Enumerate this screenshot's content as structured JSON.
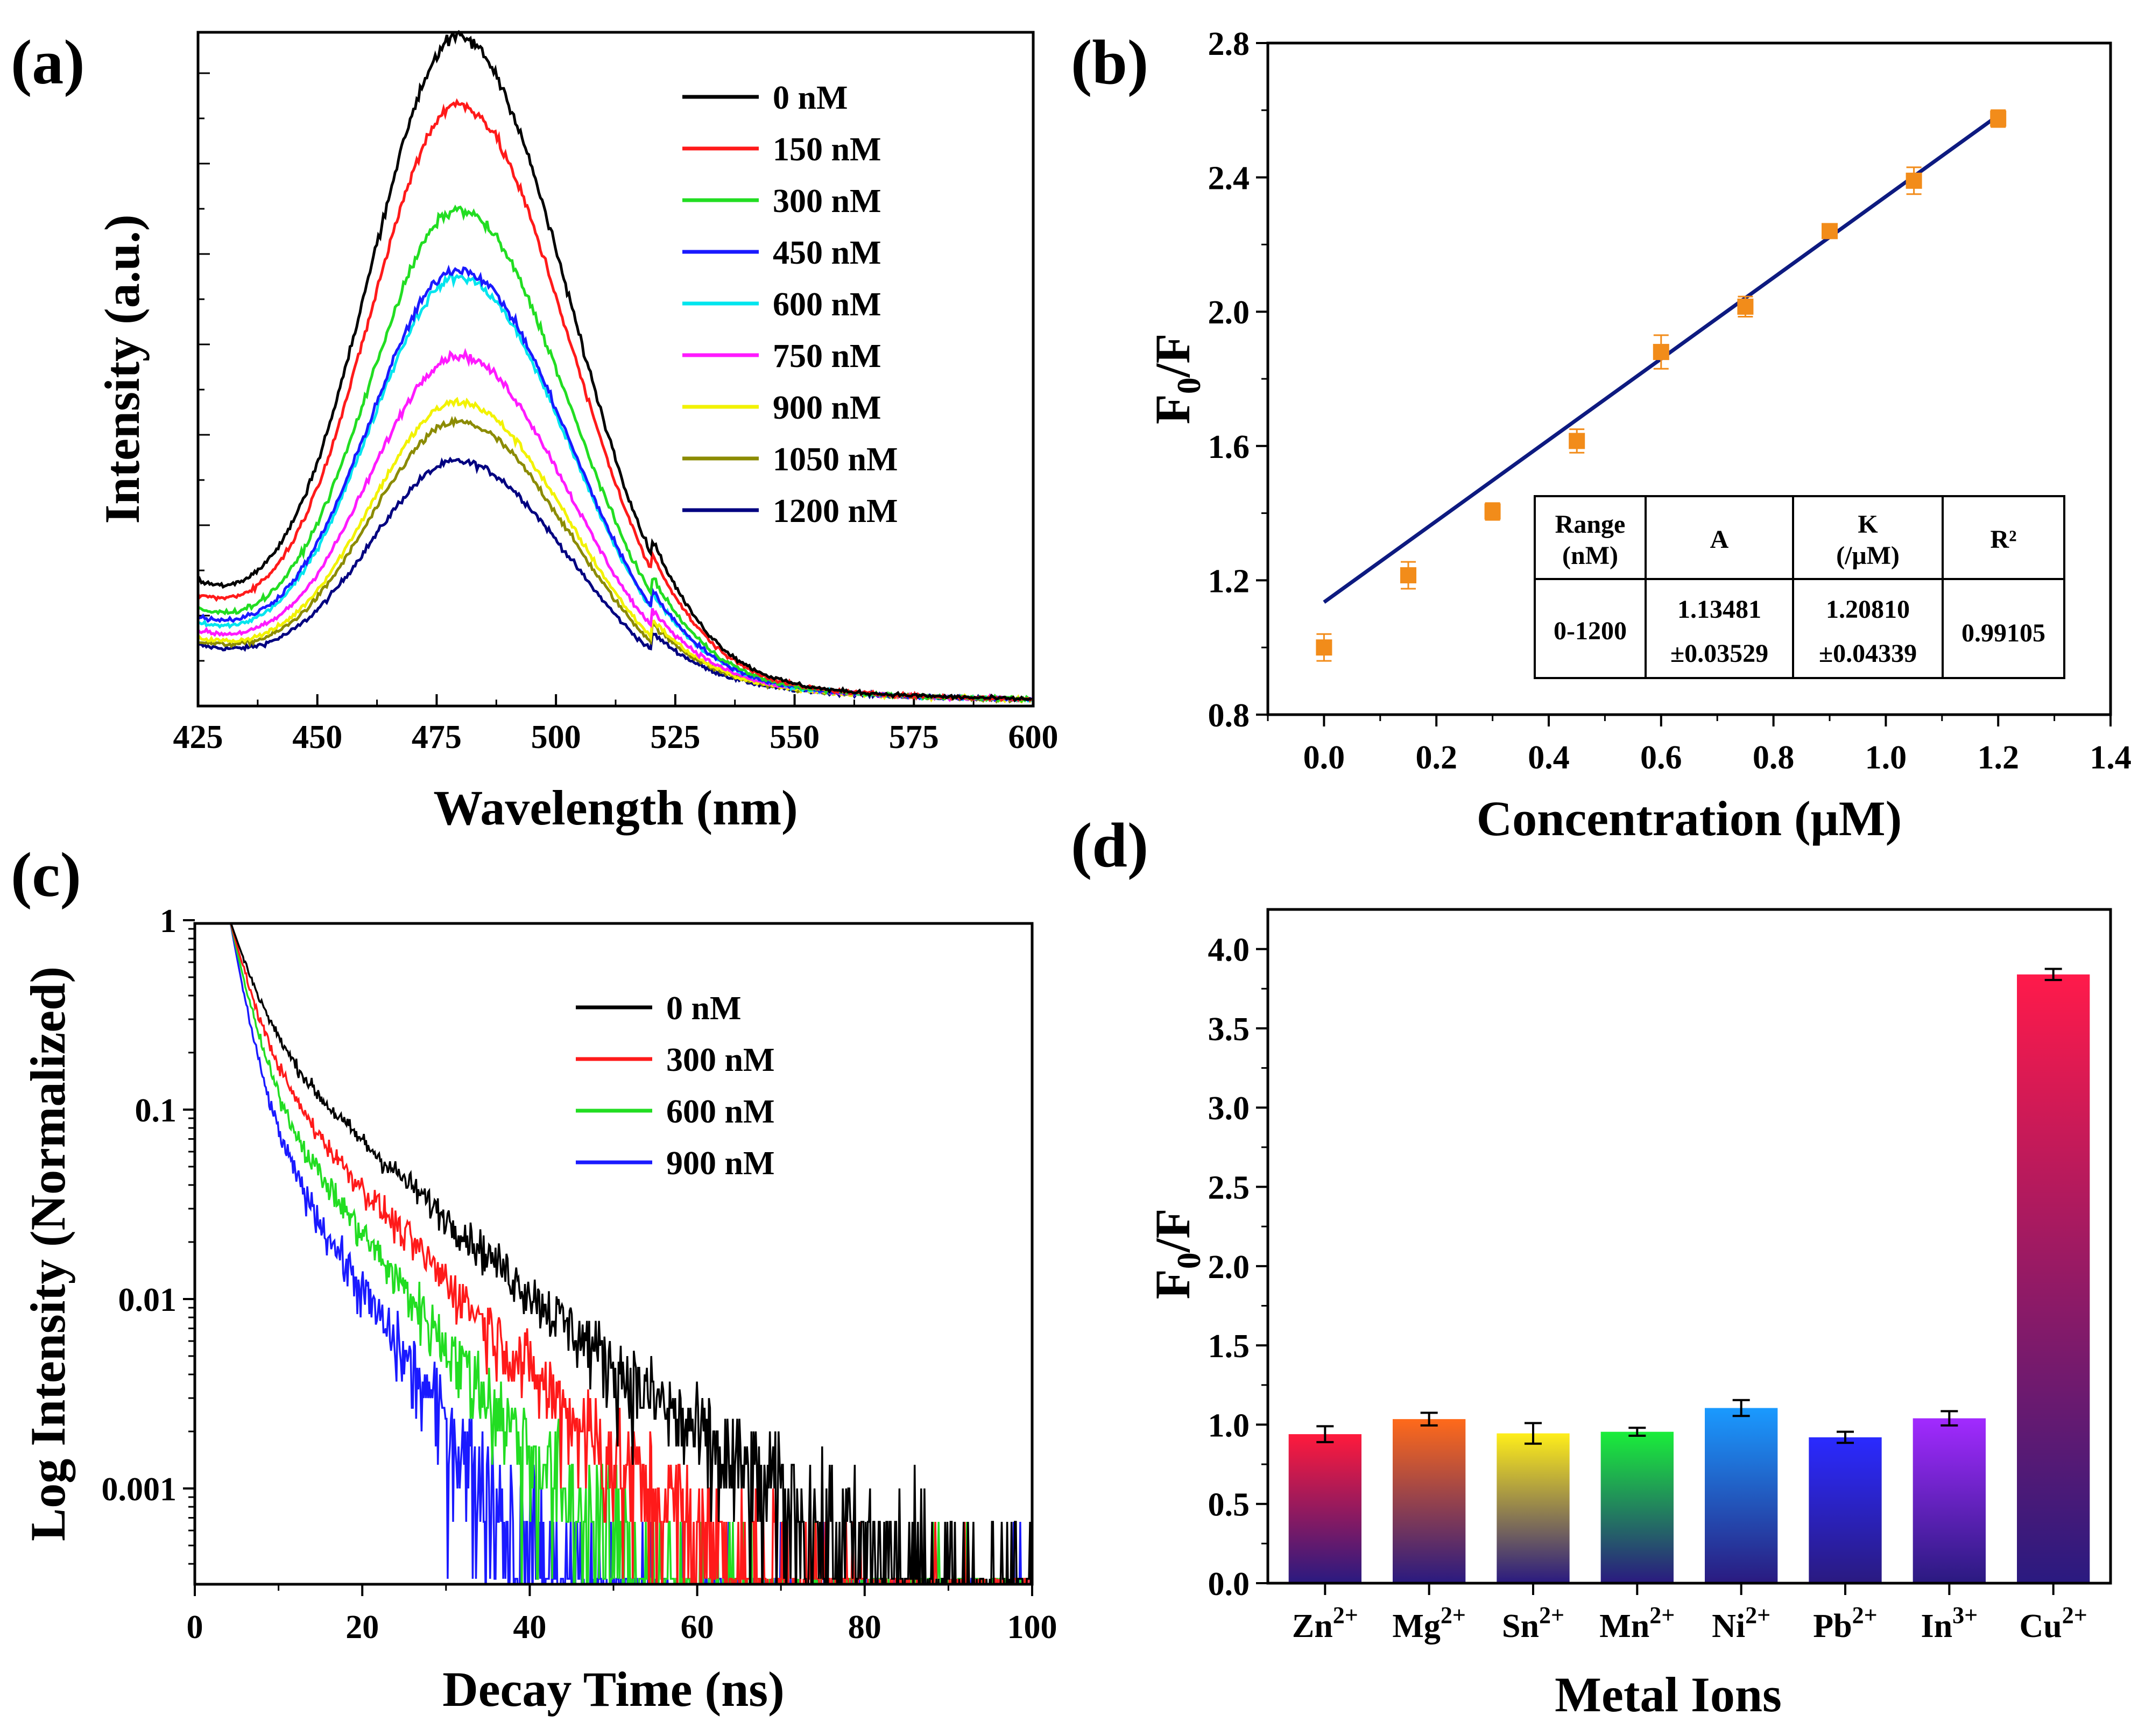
{
  "figure": {
    "panel_labels": [
      "(a)",
      "(b)",
      "(c)",
      "(d)"
    ]
  },
  "chart_data": [
    {
      "panel": "a",
      "type": "line",
      "title": "",
      "xlabel": "Wavelength (nm)",
      "ylabel": "Intensity (a.u.)",
      "xlim": [
        425,
        600
      ],
      "ylim": [
        0,
        1.05
      ],
      "x_ticks": [
        "425",
        "450",
        "475",
        "500",
        "525",
        "550",
        "575",
        "600"
      ],
      "x_tick_values": [
        425,
        450,
        475,
        500,
        525,
        550,
        575,
        600
      ],
      "legend_position": "top-right",
      "peak_wavelength": 480,
      "series": [
        {
          "name": "0 nM",
          "color": "#000000",
          "peak": 1.0,
          "start": 0.18
        },
        {
          "name": "150 nM",
          "color": "#ff1a1a",
          "peak": 0.9,
          "start": 0.16
        },
        {
          "name": "300 nM",
          "color": "#22dd22",
          "peak": 0.74,
          "start": 0.14
        },
        {
          "name": "450 nM",
          "color": "#1a1aff",
          "peak": 0.65,
          "start": 0.13
        },
        {
          "name": "600 nM",
          "color": "#00e5ee",
          "peak": 0.64,
          "start": 0.12
        },
        {
          "name": "750 nM",
          "color": "#ff1aff",
          "peak": 0.52,
          "start": 0.11
        },
        {
          "name": "900 nM",
          "color": "#f2f200",
          "peak": 0.45,
          "start": 0.1
        },
        {
          "name": "1050 nM",
          "color": "#8b8b00",
          "peak": 0.42,
          "start": 0.095
        },
        {
          "name": "1200 nM",
          "color": "#000080",
          "peak": 0.36,
          "start": 0.09
        }
      ]
    },
    {
      "panel": "b",
      "type": "scatter",
      "title": "",
      "xlabel": "Concentration (μM)",
      "ylabel_main": "F",
      "ylabel_sub": "0",
      "ylabel_tail": "/F",
      "xlim": [
        -0.1,
        1.4
      ],
      "ylim": [
        0.8,
        2.8
      ],
      "x_ticks": [
        "0.0",
        "0.2",
        "0.4",
        "0.6",
        "0.8",
        "1.0",
        "1.2",
        "1.4"
      ],
      "x_tick_values": [
        0,
        0.2,
        0.4,
        0.6,
        0.8,
        1.0,
        1.2,
        1.4
      ],
      "y_ticks": [
        "0.8",
        "1.2",
        "1.6",
        "2.0",
        "2.4",
        "2.8"
      ],
      "y_tick_values": [
        0.8,
        1.2,
        1.6,
        2.0,
        2.4,
        2.8
      ],
      "marker_color": "#f28c1a",
      "fit_color": "#0d1a80",
      "x": [
        0.0,
        0.15,
        0.3,
        0.45,
        0.6,
        0.75,
        0.9,
        1.05,
        1.2
      ],
      "y": [
        1.0,
        1.215,
        1.405,
        1.615,
        1.88,
        2.015,
        2.24,
        2.39,
        2.575
      ],
      "yerr": [
        0.04,
        0.04,
        0.025,
        0.035,
        0.05,
        0.03,
        0.02,
        0.04,
        0.025
      ],
      "fit": {
        "intercept": 1.13481,
        "slope": 1.2081,
        "x_range": [
          0,
          1.2
        ]
      },
      "table": {
        "headers": [
          [
            "Range",
            "(nM)"
          ],
          [
            "A"
          ],
          [
            "K",
            "(/μM)"
          ],
          [
            "R²"
          ]
        ],
        "row": [
          [
            "0-1200"
          ],
          [
            "1.13481",
            "±0.03529"
          ],
          [
            "1.20810",
            "±0.04339"
          ],
          [
            "0.99105"
          ]
        ]
      }
    },
    {
      "panel": "c",
      "type": "line",
      "title": "",
      "xlabel": "Decay Time (ns)",
      "ylabel": "Log Intensity (Normalized)",
      "xlim": [
        0,
        100
      ],
      "ylim_log": [
        0.0003,
        1.0
      ],
      "x_ticks": [
        "0",
        "20",
        "40",
        "60",
        "80",
        "100"
      ],
      "x_tick_values": [
        0,
        20,
        40,
        60,
        80,
        100
      ],
      "y_ticks": [
        "1",
        "0.1",
        "0.01",
        "0.001"
      ],
      "y_tick_values": [
        1,
        0.1,
        0.01,
        0.001
      ],
      "legend_position": "top-right",
      "start_time": 4.2,
      "series": [
        {
          "name": "0 nM",
          "color": "#000000",
          "tau1": 2.6,
          "tau2": 11.0,
          "a2": 0.28,
          "floor": 0.0011,
          "noise_onset": 20
        },
        {
          "name": "300 nM",
          "color": "#ff1a1a",
          "tau1": 2.2,
          "tau2": 9.0,
          "a2": 0.22,
          "floor": 0.0009,
          "noise_onset": 18
        },
        {
          "name": "600 nM",
          "color": "#22dd22",
          "tau1": 1.9,
          "tau2": 7.5,
          "a2": 0.18,
          "floor": 0.0007,
          "noise_onset": 16
        },
        {
          "name": "900 nM",
          "color": "#1a1aff",
          "tau1": 1.6,
          "tau2": 6.2,
          "a2": 0.14,
          "floor": 0.0005,
          "noise_onset": 14
        }
      ]
    },
    {
      "panel": "d",
      "type": "bar",
      "title": "",
      "xlabel": "Metal Ions",
      "ylabel_main": "F",
      "ylabel_sub": "0",
      "ylabel_tail": "/F",
      "ylim": [
        0,
        4.25
      ],
      "y_ticks": [
        "0.0",
        "0.5",
        "1.0",
        "1.5",
        "2.0",
        "2.5",
        "3.0",
        "3.5",
        "4.0"
      ],
      "y_tick_values": [
        0,
        0.5,
        1.0,
        1.5,
        2.0,
        2.5,
        3.0,
        3.5,
        4.0
      ],
      "categories": [
        {
          "base": "Zn",
          "charge": "2+"
        },
        {
          "base": "Mg",
          "charge": "2+"
        },
        {
          "base": "Sn",
          "charge": "2+"
        },
        {
          "base": "Mn",
          "charge": "2+"
        },
        {
          "base": "Ni",
          "charge": "2+"
        },
        {
          "base": "Pb",
          "charge": "2+"
        },
        {
          "base": "In",
          "charge": "3+"
        },
        {
          "base": "Cu",
          "charge": "2+"
        }
      ],
      "values": [
        0.94,
        1.035,
        0.945,
        0.955,
        1.105,
        0.92,
        1.04,
        3.84
      ],
      "errors": [
        0.05,
        0.04,
        0.065,
        0.025,
        0.05,
        0.035,
        0.045,
        0.035
      ],
      "bar_top_colors": [
        "#ff1a3c",
        "#ff6a1a",
        "#ffee1a",
        "#1aee3a",
        "#1a9aff",
        "#2a2aff",
        "#a22aff",
        "#ff1a4a"
      ],
      "bar_bottom_color": "#2a1a80"
    }
  ]
}
